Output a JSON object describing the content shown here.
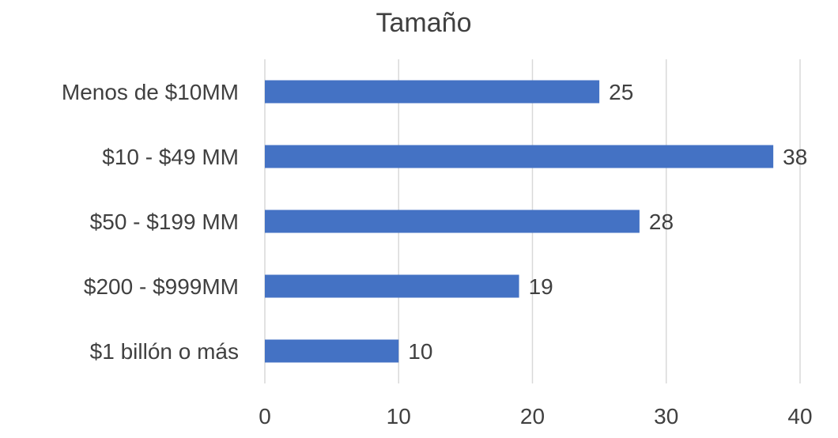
{
  "chart_data": {
    "type": "bar",
    "orientation": "horizontal",
    "title": "Tamaño",
    "xlabel": "",
    "ylabel": "",
    "categories": [
      "Menos de $10MM",
      "$10 - $49 MM",
      "$50 - $199 MM",
      "$200 - $999MM",
      "$1 billón o más"
    ],
    "values": [
      25,
      38,
      28,
      19,
      10
    ],
    "xlim": [
      0,
      40
    ],
    "xticks": [
      "0",
      "10",
      "20",
      "30",
      "40"
    ],
    "grid": true,
    "legend": "none",
    "data_labels": true,
    "colors": {
      "bar": "#4472C4",
      "grid": "#D9D9D9",
      "text": "#404040"
    }
  }
}
